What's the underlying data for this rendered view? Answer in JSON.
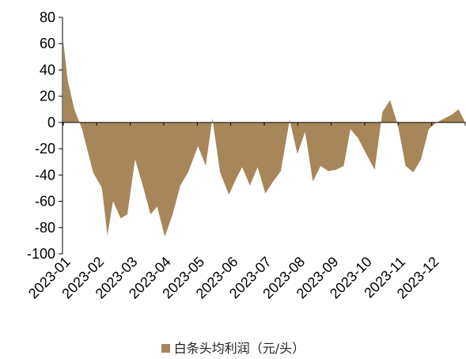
{
  "chart_data": {
    "type": "area",
    "title": "",
    "xlabel": "",
    "ylabel": "",
    "ylim": [
      -100,
      80
    ],
    "yticks": [
      80,
      60,
      40,
      20,
      0,
      -20,
      -40,
      -60,
      -80,
      -100
    ],
    "xlim": [
      "2023-01-01",
      "2023-12-31"
    ],
    "xtick_labels": [
      "2023-01",
      "2023-02",
      "2023-03",
      "2023-04",
      "2023-05",
      "2023-06",
      "2023-07",
      "2023-08",
      "2023-09",
      "2023-10",
      "2023-11",
      "2023-12"
    ],
    "legend_position": "bottom",
    "series": [
      {
        "name": "白条头均利润（元/头）",
        "color": "#A78659",
        "points": [
          {
            "x": "2023-01-01",
            "y": 62
          },
          {
            "x": "2023-01-05",
            "y": 32
          },
          {
            "x": "2023-01-11",
            "y": 10
          },
          {
            "x": "2023-01-18",
            "y": -5
          },
          {
            "x": "2023-01-28",
            "y": -38
          },
          {
            "x": "2023-02-05",
            "y": -50
          },
          {
            "x": "2023-02-10",
            "y": -86
          },
          {
            "x": "2023-02-15",
            "y": -60
          },
          {
            "x": "2023-02-22",
            "y": -73
          },
          {
            "x": "2023-02-28",
            "y": -70
          },
          {
            "x": "2023-03-07",
            "y": -28
          },
          {
            "x": "2023-03-14",
            "y": -48
          },
          {
            "x": "2023-03-21",
            "y": -70
          },
          {
            "x": "2023-03-27",
            "y": -64
          },
          {
            "x": "2023-04-03",
            "y": -87
          },
          {
            "x": "2023-04-10",
            "y": -70
          },
          {
            "x": "2023-04-17",
            "y": -48
          },
          {
            "x": "2023-04-24",
            "y": -38
          },
          {
            "x": "2023-05-03",
            "y": -18
          },
          {
            "x": "2023-05-10",
            "y": -33
          },
          {
            "x": "2023-05-16",
            "y": 3
          },
          {
            "x": "2023-05-23",
            "y": -38
          },
          {
            "x": "2023-05-31",
            "y": -55
          },
          {
            "x": "2023-06-07",
            "y": -42
          },
          {
            "x": "2023-06-12",
            "y": -34
          },
          {
            "x": "2023-06-19",
            "y": -48
          },
          {
            "x": "2023-06-26",
            "y": -34
          },
          {
            "x": "2023-07-03",
            "y": -54
          },
          {
            "x": "2023-07-10",
            "y": -45
          },
          {
            "x": "2023-07-17",
            "y": -37
          },
          {
            "x": "2023-07-25",
            "y": 2
          },
          {
            "x": "2023-08-01",
            "y": -24
          },
          {
            "x": "2023-08-08",
            "y": -7
          },
          {
            "x": "2023-08-15",
            "y": -45
          },
          {
            "x": "2023-08-22",
            "y": -33
          },
          {
            "x": "2023-08-29",
            "y": -37
          },
          {
            "x": "2023-09-05",
            "y": -36
          },
          {
            "x": "2023-09-12",
            "y": -33
          },
          {
            "x": "2023-09-18",
            "y": -5
          },
          {
            "x": "2023-09-25",
            "y": -12
          },
          {
            "x": "2023-10-03",
            "y": -25
          },
          {
            "x": "2023-10-10",
            "y": -36
          },
          {
            "x": "2023-10-17",
            "y": 8
          },
          {
            "x": "2023-10-24",
            "y": 17
          },
          {
            "x": "2023-10-31",
            "y": -2
          },
          {
            "x": "2023-11-07",
            "y": -33
          },
          {
            "x": "2023-11-14",
            "y": -38
          },
          {
            "x": "2023-11-21",
            "y": -28
          },
          {
            "x": "2023-11-28",
            "y": -5
          },
          {
            "x": "2023-12-05",
            "y": 0
          },
          {
            "x": "2023-12-12",
            "y": 3
          },
          {
            "x": "2023-12-19",
            "y": 6
          },
          {
            "x": "2023-12-25",
            "y": 10
          },
          {
            "x": "2023-12-31",
            "y": 0
          }
        ]
      }
    ]
  }
}
